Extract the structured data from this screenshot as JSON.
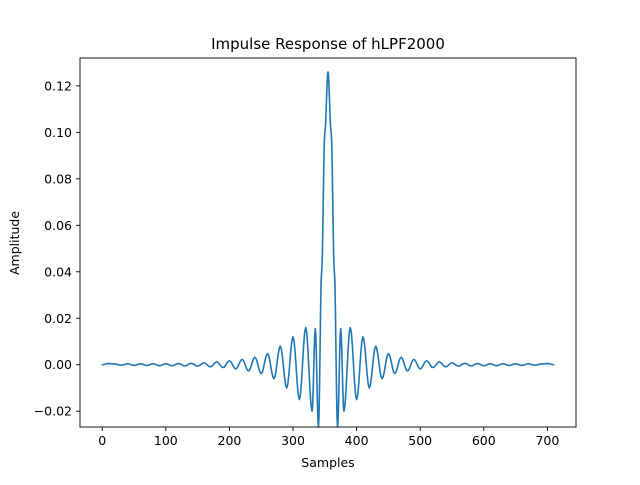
{
  "chart_data": {
    "type": "line",
    "title": "Impulse Response of hLPF2000",
    "xlabel": "Samples",
    "ylabel": "Amplitude",
    "xlim": [
      -35,
      745
    ],
    "ylim": [
      -0.0268,
      0.132
    ],
    "x_ticks": [
      0,
      100,
      200,
      300,
      400,
      500,
      600,
      700
    ],
    "x_tick_labels": [
      "0",
      "100",
      "200",
      "300",
      "400",
      "500",
      "600",
      "700"
    ],
    "y_ticks": [
      -0.02,
      0.0,
      0.02,
      0.04,
      0.06,
      0.08,
      0.1,
      0.12
    ],
    "y_tick_labels": [
      "−0.02",
      "0.00",
      "0.02",
      "0.04",
      "0.06",
      "0.08",
      "0.10",
      "0.12"
    ],
    "grid": false,
    "legend": "none",
    "series": [
      {
        "color": "#1f77b4",
        "x": [
          0,
          10,
          20,
          30,
          40,
          50,
          60,
          70,
          80,
          90,
          100,
          110,
          120,
          130,
          140,
          150,
          160,
          170,
          180,
          190,
          200,
          210,
          220,
          230,
          240,
          250,
          260,
          270,
          280,
          290,
          300,
          310,
          320,
          330,
          335,
          340,
          345,
          350,
          355,
          360,
          365,
          370,
          375,
          380,
          390,
          400,
          410,
          420,
          430,
          440,
          450,
          460,
          470,
          480,
          490,
          500,
          510,
          520,
          530,
          540,
          550,
          560,
          570,
          580,
          590,
          600,
          610,
          620,
          630,
          640,
          650,
          660,
          670,
          680,
          690,
          700,
          710
        ],
        "y": [
          0.0,
          0.0005,
          0.0003,
          -0.0002,
          0.0004,
          -0.0003,
          0.0004,
          -0.0003,
          0.0004,
          -0.0004,
          0.0004,
          -0.0004,
          0.0005,
          -0.0005,
          0.0006,
          -0.0006,
          0.0008,
          -0.0009,
          0.0012,
          -0.0012,
          0.0017,
          -0.0018,
          0.0023,
          -0.0027,
          0.0032,
          -0.0038,
          0.0048,
          -0.006,
          0.008,
          -0.01,
          0.012,
          -0.015,
          0.016,
          -0.02,
          0.0155,
          -0.0268,
          0.04,
          0.1,
          0.126,
          0.1,
          0.04,
          -0.0268,
          0.0155,
          -0.02,
          0.016,
          -0.015,
          0.012,
          -0.01,
          0.008,
          -0.006,
          0.0048,
          -0.0038,
          0.0032,
          -0.0027,
          0.0023,
          -0.0018,
          0.0017,
          -0.0012,
          0.0012,
          -0.0009,
          0.0008,
          -0.0006,
          0.0006,
          -0.0005,
          0.0005,
          -0.0004,
          0.0004,
          -0.0004,
          0.0004,
          -0.0003,
          0.0004,
          -0.0003,
          0.0004,
          -0.0002,
          0.0003,
          0.0005,
          0.0
        ]
      }
    ]
  }
}
